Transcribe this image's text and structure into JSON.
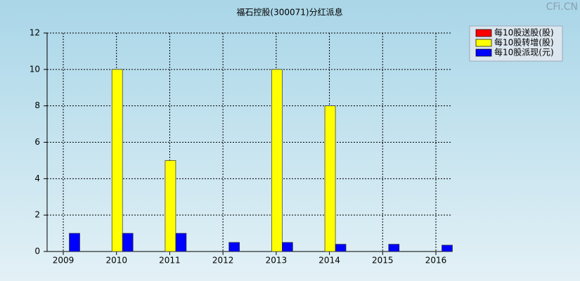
{
  "chart_data": {
    "type": "bar",
    "title": "福石控股(300071)分红派息",
    "watermark": "CFi.CN",
    "categories": [
      "2009",
      "2010",
      "2011",
      "2012",
      "2013",
      "2014",
      "2015",
      "2016"
    ],
    "series": [
      {
        "name": "每10股送股(股)",
        "color": "#ff0000",
        "values": [
          0,
          0,
          0,
          0,
          0,
          0,
          0,
          0
        ]
      },
      {
        "name": "每10股转增(股)",
        "color": "#ffff00",
        "values": [
          0,
          10,
          5,
          0,
          10,
          8,
          0,
          0
        ]
      },
      {
        "name": "每10股派现(元)",
        "color": "#0000ff",
        "values": [
          1,
          1,
          1,
          0.5,
          0.5,
          0.4,
          0.4,
          0.35
        ]
      }
    ],
    "ylim": [
      0,
      12
    ],
    "yticks": [
      0,
      2,
      4,
      6,
      8,
      10,
      12
    ],
    "grid": true,
    "legend": "top-right"
  }
}
